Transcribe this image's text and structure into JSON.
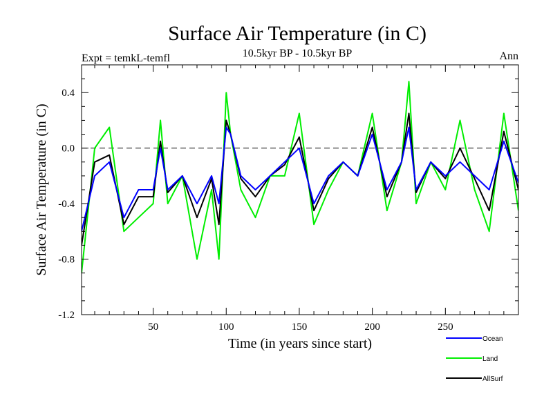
{
  "chart_data": {
    "type": "line",
    "title": "Surface Air Temperature (in C)",
    "subtitle_left": "Expt = temkL-temfl",
    "subtitle_center": "10.5kyr BP - 10.5kyr BP",
    "subtitle_right": "Ann",
    "xlabel": "Time (in years since start)",
    "ylabel": "Surface Air Temperature (in C)",
    "xlim": [
      1,
      300
    ],
    "ylim": [
      -1.2,
      0.6
    ],
    "x_ticks": [
      50,
      100,
      150,
      200,
      250
    ],
    "x_tick_labels": [
      "50",
      "100",
      "150",
      "200",
      "250"
    ],
    "y_ticks": [
      0.4,
      0.0,
      -0.4,
      -0.8,
      -1.2
    ],
    "y_tick_labels": [
      "0.4",
      "0.0",
      "-0.4",
      "-0.8",
      "-1.2"
    ],
    "reference_line": {
      "y": 0.0,
      "style": "dashed"
    },
    "series": [
      {
        "name": "Ocean",
        "color": "#0000ff",
        "x": [
          1,
          10,
          20,
          30,
          40,
          50,
          55,
          60,
          70,
          80,
          90,
          95,
          100,
          103,
          110,
          120,
          130,
          140,
          150,
          160,
          170,
          180,
          190,
          200,
          210,
          220,
          225,
          230,
          240,
          250,
          260,
          270,
          280,
          290,
          300
        ],
        "values": [
          -0.6,
          -0.2,
          -0.1,
          -0.5,
          -0.3,
          -0.3,
          0.0,
          -0.3,
          -0.2,
          -0.4,
          -0.2,
          -0.4,
          0.15,
          0.1,
          -0.2,
          -0.3,
          -0.2,
          -0.1,
          0.0,
          -0.4,
          -0.2,
          -0.1,
          -0.2,
          0.1,
          -0.3,
          -0.1,
          0.15,
          -0.3,
          -0.1,
          -0.2,
          -0.1,
          -0.2,
          -0.3,
          0.05,
          -0.25
        ]
      },
      {
        "name": "Land",
        "color": "#00ee00",
        "x": [
          1,
          10,
          20,
          30,
          40,
          50,
          55,
          60,
          70,
          80,
          90,
          95,
          100,
          103,
          110,
          120,
          130,
          140,
          150,
          160,
          170,
          180,
          190,
          200,
          210,
          220,
          225,
          230,
          240,
          250,
          260,
          270,
          280,
          290,
          300
        ],
        "values": [
          -0.9,
          0.0,
          0.15,
          -0.6,
          -0.5,
          -0.4,
          0.2,
          -0.4,
          -0.2,
          -0.8,
          -0.3,
          -0.8,
          0.4,
          0.1,
          -0.3,
          -0.5,
          -0.2,
          -0.2,
          0.25,
          -0.55,
          -0.3,
          -0.1,
          -0.2,
          0.25,
          -0.45,
          -0.1,
          0.48,
          -0.4,
          -0.1,
          -0.3,
          0.2,
          -0.3,
          -0.6,
          0.25,
          -0.45
        ]
      },
      {
        "name": "AllSurf",
        "color": "#000000",
        "x": [
          1,
          10,
          20,
          30,
          40,
          50,
          55,
          60,
          70,
          80,
          90,
          95,
          100,
          103,
          110,
          120,
          130,
          140,
          150,
          160,
          170,
          180,
          190,
          200,
          210,
          220,
          225,
          230,
          240,
          250,
          260,
          270,
          280,
          290,
          300
        ],
        "values": [
          -0.7,
          -0.1,
          -0.05,
          -0.55,
          -0.35,
          -0.35,
          0.05,
          -0.32,
          -0.2,
          -0.5,
          -0.22,
          -0.55,
          0.2,
          0.1,
          -0.22,
          -0.35,
          -0.2,
          -0.12,
          0.08,
          -0.45,
          -0.22,
          -0.1,
          -0.2,
          0.15,
          -0.35,
          -0.1,
          0.25,
          -0.32,
          -0.1,
          -0.22,
          0.0,
          -0.22,
          -0.45,
          0.12,
          -0.3
        ]
      }
    ],
    "legend": {
      "placement": "bottom-right",
      "entries": [
        "Ocean",
        "Land",
        "AllSurf"
      ]
    }
  }
}
